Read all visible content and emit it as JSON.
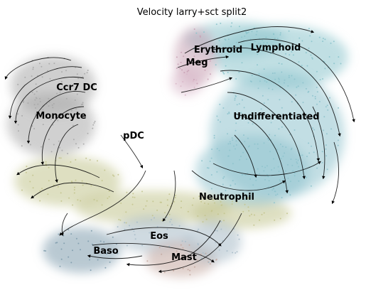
{
  "chart_data": {
    "type": "scatter",
    "title": "Velocity larry+sct split2",
    "xlabel": "",
    "ylabel": "",
    "grid": false,
    "legend": "on data",
    "stream_color": "#000000",
    "clusters": [
      {
        "name": "Erythroid",
        "color": "#c9a2b5"
      },
      {
        "name": "Lymphoid",
        "color": "#8cc4cc"
      },
      {
        "name": "Meg",
        "color": "#d9b7c8"
      },
      {
        "name": "Ccr7 DC",
        "color": "#a8a8a8"
      },
      {
        "name": "Monocyte",
        "color": "#a9a9a9"
      },
      {
        "name": "pDC",
        "color": "#b5b5b5"
      },
      {
        "name": "Undifferentiated",
        "color": "#8fc3cd"
      },
      {
        "name": "Neutrophil",
        "color": "#c3c48e"
      },
      {
        "name": "Eos",
        "color": "#a8bcc9"
      },
      {
        "name": "Baso",
        "color": "#7f9cad"
      },
      {
        "name": "Mast",
        "color": "#c4a8a0"
      }
    ]
  }
}
